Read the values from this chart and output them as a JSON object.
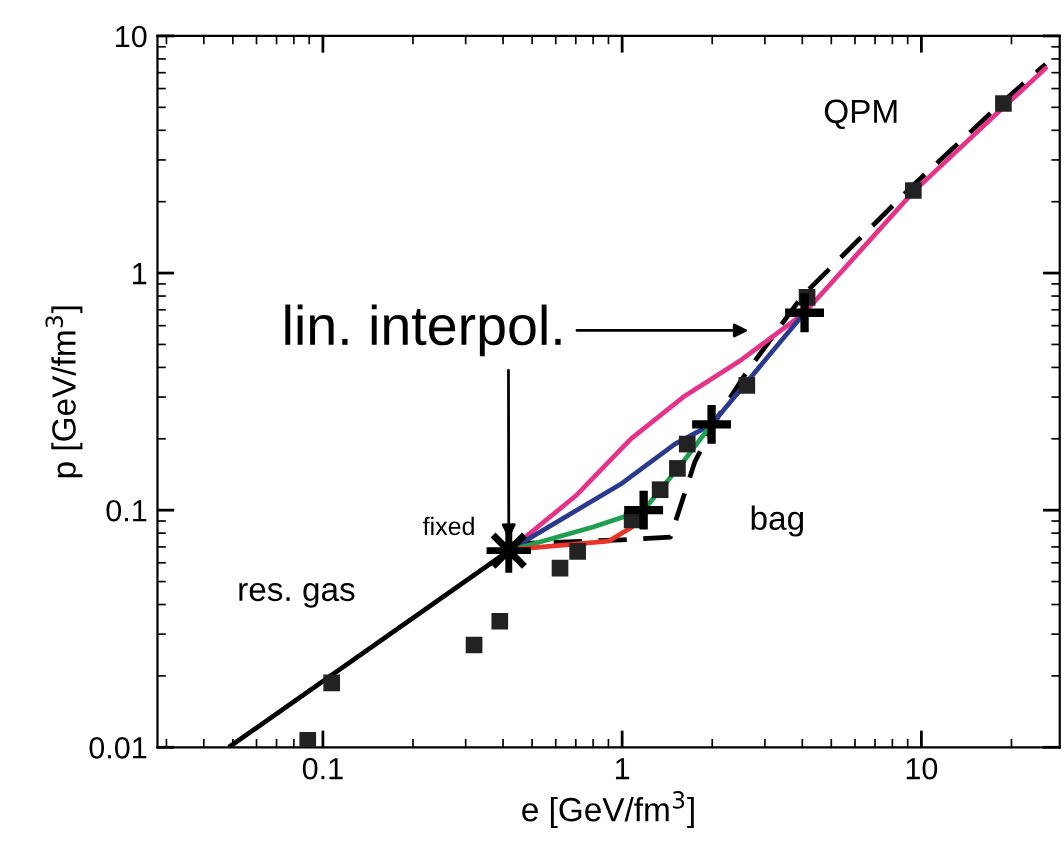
{
  "chart_data": {
    "type": "line",
    "xlabel": "e [GeV/fm$^{3}$]",
    "ylabel": "p [GeV/fm$^{3}$]",
    "log": "xy",
    "grid": false,
    "legend": false,
    "xlim": [
      0.028,
      29
    ],
    "xticks": [
      0.1,
      1,
      10
    ],
    "ylim": [
      0.01,
      10
    ],
    "yticks": [
      0.01,
      0.1,
      1,
      10
    ],
    "series": [
      {
        "color": "#000000",
        "line_style": "solid",
        "marker": "none",
        "x": [
          0.049,
          0.418
        ],
        "values": [
          0.0101,
          0.0675
        ]
      },
      {
        "color": "#000000",
        "line_style": "dashed",
        "marker": "none",
        "x": [
          0.418,
          1.0,
          1.45,
          1.75,
          2.1,
          2.6,
          4.0,
          9.4,
          18.8,
          26
        ],
        "values": [
          0.072,
          0.075,
          0.077,
          0.16,
          0.25,
          0.38,
          0.8,
          2.35,
          5.3,
          7.6
        ]
      },
      {
        "color": "#e6338a",
        "line_style": "solid",
        "marker": "none",
        "x": [
          0.418,
          0.7,
          1.07,
          1.6,
          2.5,
          4.07,
          9.4,
          18.8,
          26
        ],
        "values": [
          0.0675,
          0.115,
          0.2,
          0.3,
          0.43,
          0.68,
          2.2,
          5.0,
          7.3
        ]
      },
      {
        "color": "#2b3a8f",
        "line_style": "solid",
        "marker": "none",
        "x": [
          0.418,
          1.0,
          1.5,
          1.99,
          4.07
        ],
        "values": [
          0.0675,
          0.13,
          0.19,
          0.23,
          0.68
        ]
      },
      {
        "color": "#1fa050",
        "line_style": "solid",
        "marker": "none",
        "x": [
          0.418,
          0.8,
          1.18,
          1.6,
          1.99
        ],
        "values": [
          0.0675,
          0.085,
          0.1,
          0.16,
          0.23
        ]
      },
      {
        "color": "#e8352a",
        "line_style": "solid",
        "marker": "none",
        "x": [
          0.418,
          0.9,
          1.08
        ],
        "values": [
          0.068,
          0.074,
          0.085
        ]
      },
      {
        "type": "scatter",
        "color": "#222222",
        "marker": "square",
        "x": [
          0.089,
          0.107,
          0.32,
          0.39,
          0.62,
          0.71,
          1.08,
          1.34,
          1.53,
          1.65,
          2.61,
          4.15,
          9.4,
          18.8
        ],
        "values": [
          0.0107,
          0.0187,
          0.027,
          0.034,
          0.057,
          0.067,
          0.091,
          0.122,
          0.15,
          0.19,
          0.336,
          0.79,
          2.23,
          5.19
        ]
      },
      {
        "type": "scatter",
        "color": "#000000",
        "marker": "cross",
        "x": [
          1.18,
          1.99,
          4.07
        ],
        "values": [
          0.1,
          0.23,
          0.68
        ]
      },
      {
        "type": "scatter",
        "color": "#000000",
        "marker": "star",
        "x": [
          0.418
        ],
        "values": [
          0.0675
        ]
      }
    ],
    "annotations": [
      {
        "text": "lin. interpol.",
        "x": 0.418,
        "y": 0.0675
      },
      {
        "text": "fixed",
        "x": 0.418,
        "y": 0.0675
      },
      "res. gas",
      "bag",
      "QPM"
    ]
  }
}
